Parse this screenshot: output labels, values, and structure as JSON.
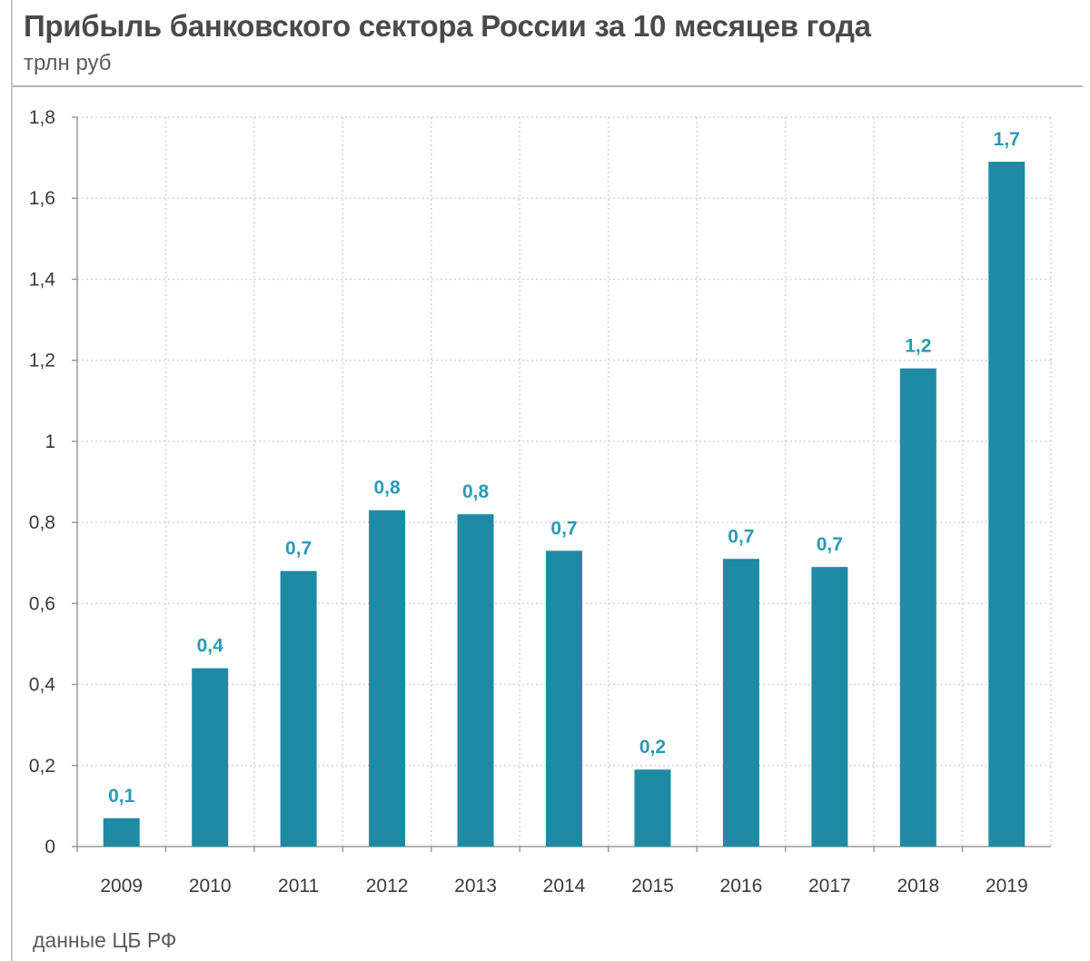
{
  "header": {
    "title": "Прибыль банковского сектора России  за 10 месяцев года",
    "unit": "трлн руб"
  },
  "footer": {
    "source": "данные ЦБ РФ"
  },
  "colors": {
    "bar": "#1f8aa3",
    "data_label": "#2a9ab4",
    "grid": "#d4d4d4",
    "axis": "#9a9a9a"
  },
  "chart_data": {
    "type": "bar",
    "title": "Прибыль банковского сектора России  за 10 месяцев года",
    "ylabel": "трлн руб",
    "xlabel": "",
    "categories": [
      "2009",
      "2010",
      "2011",
      "2012",
      "2013",
      "2014",
      "2015",
      "2016",
      "2017",
      "2018",
      "2019"
    ],
    "values": [
      0.07,
      0.44,
      0.68,
      0.83,
      0.82,
      0.73,
      0.19,
      0.71,
      0.69,
      1.18,
      1.69
    ],
    "data_labels": [
      "0,1",
      "0,4",
      "0,7",
      "0,8",
      "0,8",
      "0,7",
      "0,2",
      "0,7",
      "0,7",
      "1,2",
      "1,7"
    ],
    "ylim": [
      0,
      1.8
    ],
    "yticks": [
      0,
      0.2,
      0.4,
      0.6,
      0.8,
      1,
      1.2,
      1.4,
      1.6,
      1.8
    ],
    "ytick_labels": [
      "0",
      "0,2",
      "0,4",
      "0,6",
      "0,8",
      "1",
      "1,2",
      "1,4",
      "1,6",
      "1,8"
    ],
    "grid": true,
    "legend": "none"
  }
}
